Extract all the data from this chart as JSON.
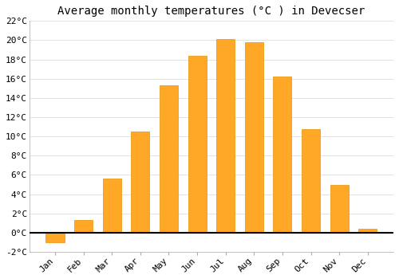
{
  "title": "Average monthly temperatures (°C ) in Devecser",
  "months": [
    "Jan",
    "Feb",
    "Mar",
    "Apr",
    "May",
    "Jun",
    "Jul",
    "Aug",
    "Sep",
    "Oct",
    "Nov",
    "Dec"
  ],
  "values": [
    -1.0,
    1.3,
    5.6,
    10.5,
    15.3,
    18.4,
    20.1,
    19.8,
    16.2,
    10.8,
    5.0,
    0.4
  ],
  "bar_color": "#FFA726",
  "bar_edge_color": "#E59400",
  "background_color": "#FFFFFF",
  "ylim": [
    -2,
    22
  ],
  "yticks": [
    -2,
    0,
    2,
    4,
    6,
    8,
    10,
    12,
    14,
    16,
    18,
    20,
    22
  ],
  "title_fontsize": 10,
  "tick_fontsize": 8,
  "grid_color": "#DDDDDD",
  "zero_line_color": "#000000",
  "bar_width": 0.65
}
